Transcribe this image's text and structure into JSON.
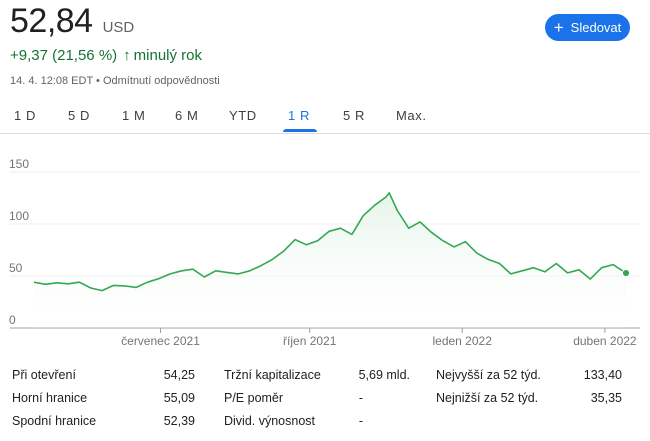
{
  "quote": {
    "price": "52,84",
    "currency": "USD",
    "change": "+9,37 (21,56 %)",
    "period": "minulý rok",
    "timestamp": "14. 4. 12:08 EDT",
    "separator": "•",
    "disclaimer": "Odmítnutí odpovědnosti"
  },
  "follow_button": {
    "label": "Sledovat",
    "icon": "plus-icon"
  },
  "tabs": [
    {
      "label": "1 D",
      "active": false
    },
    {
      "label": "5 D",
      "active": false
    },
    {
      "label": "1 M",
      "active": false
    },
    {
      "label": "6 M",
      "active": false
    },
    {
      "label": "YTD",
      "active": false
    },
    {
      "label": "1 R",
      "active": true
    },
    {
      "label": "5 R",
      "active": false
    },
    {
      "label": "Max.",
      "active": false
    }
  ],
  "colors": {
    "accent": "#1a73e8",
    "positive": "#137333",
    "line": "#34a853",
    "fill": "#e6f4ea"
  },
  "chart_data": {
    "type": "area",
    "x": [
      "2021-04-14",
      "2021-04-21",
      "2021-04-28",
      "2021-05-05",
      "2021-05-12",
      "2021-05-19",
      "2021-05-26",
      "2021-06-02",
      "2021-06-09",
      "2021-06-16",
      "2021-06-23",
      "2021-06-30",
      "2021-07-07",
      "2021-07-14",
      "2021-07-21",
      "2021-07-28",
      "2021-08-04",
      "2021-08-11",
      "2021-08-18",
      "2021-08-25",
      "2021-09-01",
      "2021-09-08",
      "2021-09-15",
      "2021-09-22",
      "2021-09-29",
      "2021-10-06",
      "2021-10-13",
      "2021-10-20",
      "2021-10-27",
      "2021-11-03",
      "2021-11-10",
      "2021-11-17",
      "2021-11-19",
      "2021-11-24",
      "2021-12-01",
      "2021-12-08",
      "2021-12-15",
      "2021-12-22",
      "2021-12-29",
      "2022-01-05",
      "2022-01-12",
      "2022-01-19",
      "2022-01-26",
      "2022-02-02",
      "2022-02-09",
      "2022-02-16",
      "2022-02-23",
      "2022-03-02",
      "2022-03-09",
      "2022-03-16",
      "2022-03-23",
      "2022-03-30",
      "2022-04-06",
      "2022-04-14"
    ],
    "values": [
      44.0,
      42.0,
      43.5,
      42.5,
      44.0,
      38.5,
      36.0,
      41.0,
      40.5,
      39.0,
      44.0,
      47.5,
      52.0,
      55.0,
      56.5,
      49.0,
      55.0,
      53.5,
      52.0,
      55.0,
      60.0,
      66.0,
      74.0,
      85.0,
      80.0,
      84.0,
      93.0,
      96.0,
      90.0,
      108.0,
      118.0,
      126.0,
      130.0,
      113.0,
      96.0,
      102.0,
      92.0,
      84.0,
      78.0,
      83.0,
      72.0,
      66.0,
      62.0,
      52.0,
      55.0,
      58.0,
      54.0,
      62.0,
      53.0,
      56.0,
      47.0,
      58.0,
      61.0,
      52.84
    ],
    "xtick_labels": [
      "červenec 2021",
      "říjen 2021",
      "leden 2022",
      "duben 2022"
    ],
    "xtick_values": [
      "2021-07-01",
      "2021-10-01",
      "2022-01-03",
      "2022-04-01"
    ],
    "ytick_labels": [
      "150",
      "100",
      "50",
      "0"
    ],
    "yticks": [
      150,
      100,
      50,
      0
    ],
    "ylim": [
      0,
      150
    ],
    "grid": true,
    "title": "",
    "xlabel": "",
    "ylabel": ""
  },
  "stats": {
    "col1": [
      {
        "label": "Při otevření",
        "value": "54,25"
      },
      {
        "label": "Horní hranice",
        "value": "55,09"
      },
      {
        "label": "Spodní hranice",
        "value": "52,39"
      }
    ],
    "col2": [
      {
        "label": "Tržní kapitalizace",
        "value": "5,69 mld."
      },
      {
        "label": "P/E poměr",
        "value": "-"
      },
      {
        "label": "Divid. výnosnost",
        "value": "-"
      }
    ],
    "col3": [
      {
        "label": "Nejvyšší za 52 týd.",
        "value": "133,40"
      },
      {
        "label": "Nejnižší za 52 týd.",
        "value": "35,35"
      }
    ]
  }
}
